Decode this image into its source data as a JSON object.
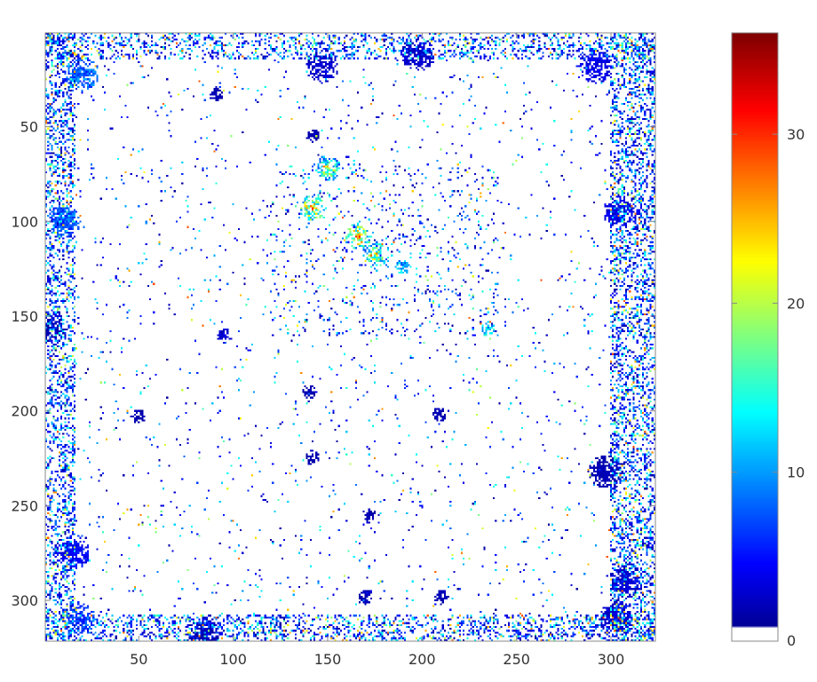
{
  "chart_data": {
    "type": "heatmap",
    "title": "",
    "xlabel": "",
    "ylabel": "",
    "xlim": [
      1,
      323
    ],
    "ylim": [
      1,
      321
    ],
    "y_direction": "reversed (row 1 at top)",
    "x_ticks": [
      50,
      100,
      150,
      200,
      250,
      300
    ],
    "y_ticks": [
      50,
      100,
      150,
      200,
      250,
      300
    ],
    "colorbar": {
      "colormap": "jet",
      "range": [
        0,
        36
      ],
      "ticks": [
        0,
        10,
        20,
        30
      ],
      "zero_color": "#ffffff"
    },
    "blobs": [
      {
        "x": 20,
        "y": 22,
        "v": 9
      },
      {
        "x": 10,
        "y": 100,
        "v": 8
      },
      {
        "x": 15,
        "y": 275,
        "v": 5
      },
      {
        "x": 18,
        "y": 310,
        "v": 7
      },
      {
        "x": 305,
        "y": 95,
        "v": 4
      },
      {
        "x": 308,
        "y": 290,
        "v": 3
      },
      {
        "x": 292,
        "y": 18,
        "v": 4
      },
      {
        "x": 302,
        "y": 310,
        "v": 3
      },
      {
        "x": 166,
        "y": 108,
        "v": 31
      },
      {
        "x": 142,
        "y": 93,
        "v": 30
      },
      {
        "x": 150,
        "y": 72,
        "v": 24
      },
      {
        "x": 176,
        "y": 118,
        "v": 26
      },
      {
        "x": 209,
        "y": 202,
        "v": 2
      },
      {
        "x": 190,
        "y": 124,
        "v": 12
      },
      {
        "x": 142,
        "y": 55,
        "v": 2
      },
      {
        "x": 140,
        "y": 190,
        "v": 2
      },
      {
        "x": 142,
        "y": 225,
        "v": 2
      },
      {
        "x": 172,
        "y": 255,
        "v": 2
      },
      {
        "x": 210,
        "y": 298,
        "v": 2
      },
      {
        "x": 170,
        "y": 298,
        "v": 2
      },
      {
        "x": 50,
        "y": 203,
        "v": 2
      },
      {
        "x": 85,
        "y": 318,
        "v": 2
      },
      {
        "x": 3,
        "y": 155,
        "v": 2
      },
      {
        "x": 297,
        "y": 232,
        "v": 2
      },
      {
        "x": 95,
        "y": 160,
        "v": 3
      },
      {
        "x": 235,
        "y": 157,
        "v": 13
      },
      {
        "x": 198,
        "y": 12,
        "v": 3
      },
      {
        "x": 91,
        "y": 33,
        "v": 2
      },
      {
        "x": 147,
        "y": 18,
        "v": 3
      }
    ],
    "noise_regions": [
      {
        "x": [
          1,
          323
        ],
        "y": [
          1,
          14
        ],
        "density": 0.26
      },
      {
        "x": [
          1,
          323
        ],
        "y": [
          308,
          321
        ],
        "density": 0.3
      },
      {
        "x": [
          1,
          16
        ],
        "y": [
          1,
          321
        ],
        "density": 0.32
      },
      {
        "x": [
          300,
          323
        ],
        "y": [
          1,
          321
        ],
        "density": 0.34
      },
      {
        "x": [
          120,
          240
        ],
        "y": [
          70,
          160
        ],
        "density": 0.05
      },
      {
        "x": [
          1,
          323
        ],
        "y": [
          1,
          321
        ],
        "density": 0.022
      }
    ]
  }
}
